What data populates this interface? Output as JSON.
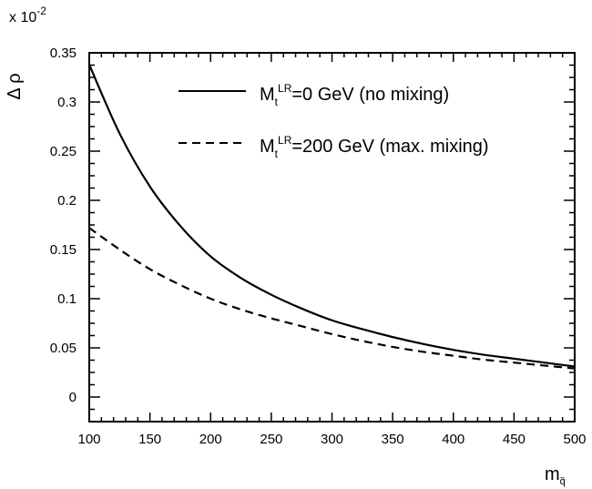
{
  "chart_data": {
    "type": "line",
    "title": "",
    "xlabel": "m",
    "xlabel_sub": "q̃",
    "ylabel": "Δ ρ",
    "y_multiplier": {
      "base": "x 10",
      "exp": "-2"
    },
    "xlim": [
      100,
      500
    ],
    "ylim": [
      -0.025,
      0.35
    ],
    "xticks": [
      100,
      150,
      200,
      250,
      300,
      350,
      400,
      450,
      500
    ],
    "xtick_labels": [
      "100",
      "150",
      "200",
      "250",
      "300",
      "350",
      "400",
      "450",
      "500"
    ],
    "yticks": [
      0,
      0.05,
      0.1,
      0.15,
      0.2,
      0.25,
      0.3,
      0.35
    ],
    "ytick_labels": [
      "0",
      "0.05",
      "0.1",
      "0.15",
      "0.2",
      "0.25",
      "0.3",
      "0.35"
    ],
    "grid": false,
    "legend_position": "top-right",
    "series": [
      {
        "name": "M_t^LR=0 GeV (no mixing)",
        "legend_main": "M",
        "legend_sub": "t",
        "legend_sup": "LR",
        "legend_rest": "=0 GeV (no mixing)",
        "style": "solid",
        "x": [
          100,
          125,
          150,
          175,
          200,
          225,
          250,
          275,
          300,
          325,
          350,
          375,
          400,
          425,
          450,
          475,
          500
        ],
        "y": [
          0.338,
          0.268,
          0.214,
          0.174,
          0.143,
          0.121,
          0.104,
          0.09,
          0.078,
          0.069,
          0.061,
          0.054,
          0.048,
          0.043,
          0.039,
          0.035,
          0.031
        ]
      },
      {
        "name": "M_t^LR=200 GeV (max. mixing)",
        "legend_main": "M",
        "legend_sub": "t",
        "legend_sup": "LR",
        "legend_rest": "=200 GeV (max. mixing)",
        "style": "dashed",
        "x": [
          100,
          125,
          150,
          175,
          200,
          225,
          250,
          275,
          300,
          325,
          350,
          375,
          400,
          425,
          450,
          475,
          500
        ],
        "y": [
          0.172,
          0.15,
          0.13,
          0.114,
          0.1,
          0.089,
          0.08,
          0.072,
          0.064,
          0.057,
          0.051,
          0.046,
          0.042,
          0.038,
          0.035,
          0.032,
          0.029
        ]
      }
    ]
  }
}
